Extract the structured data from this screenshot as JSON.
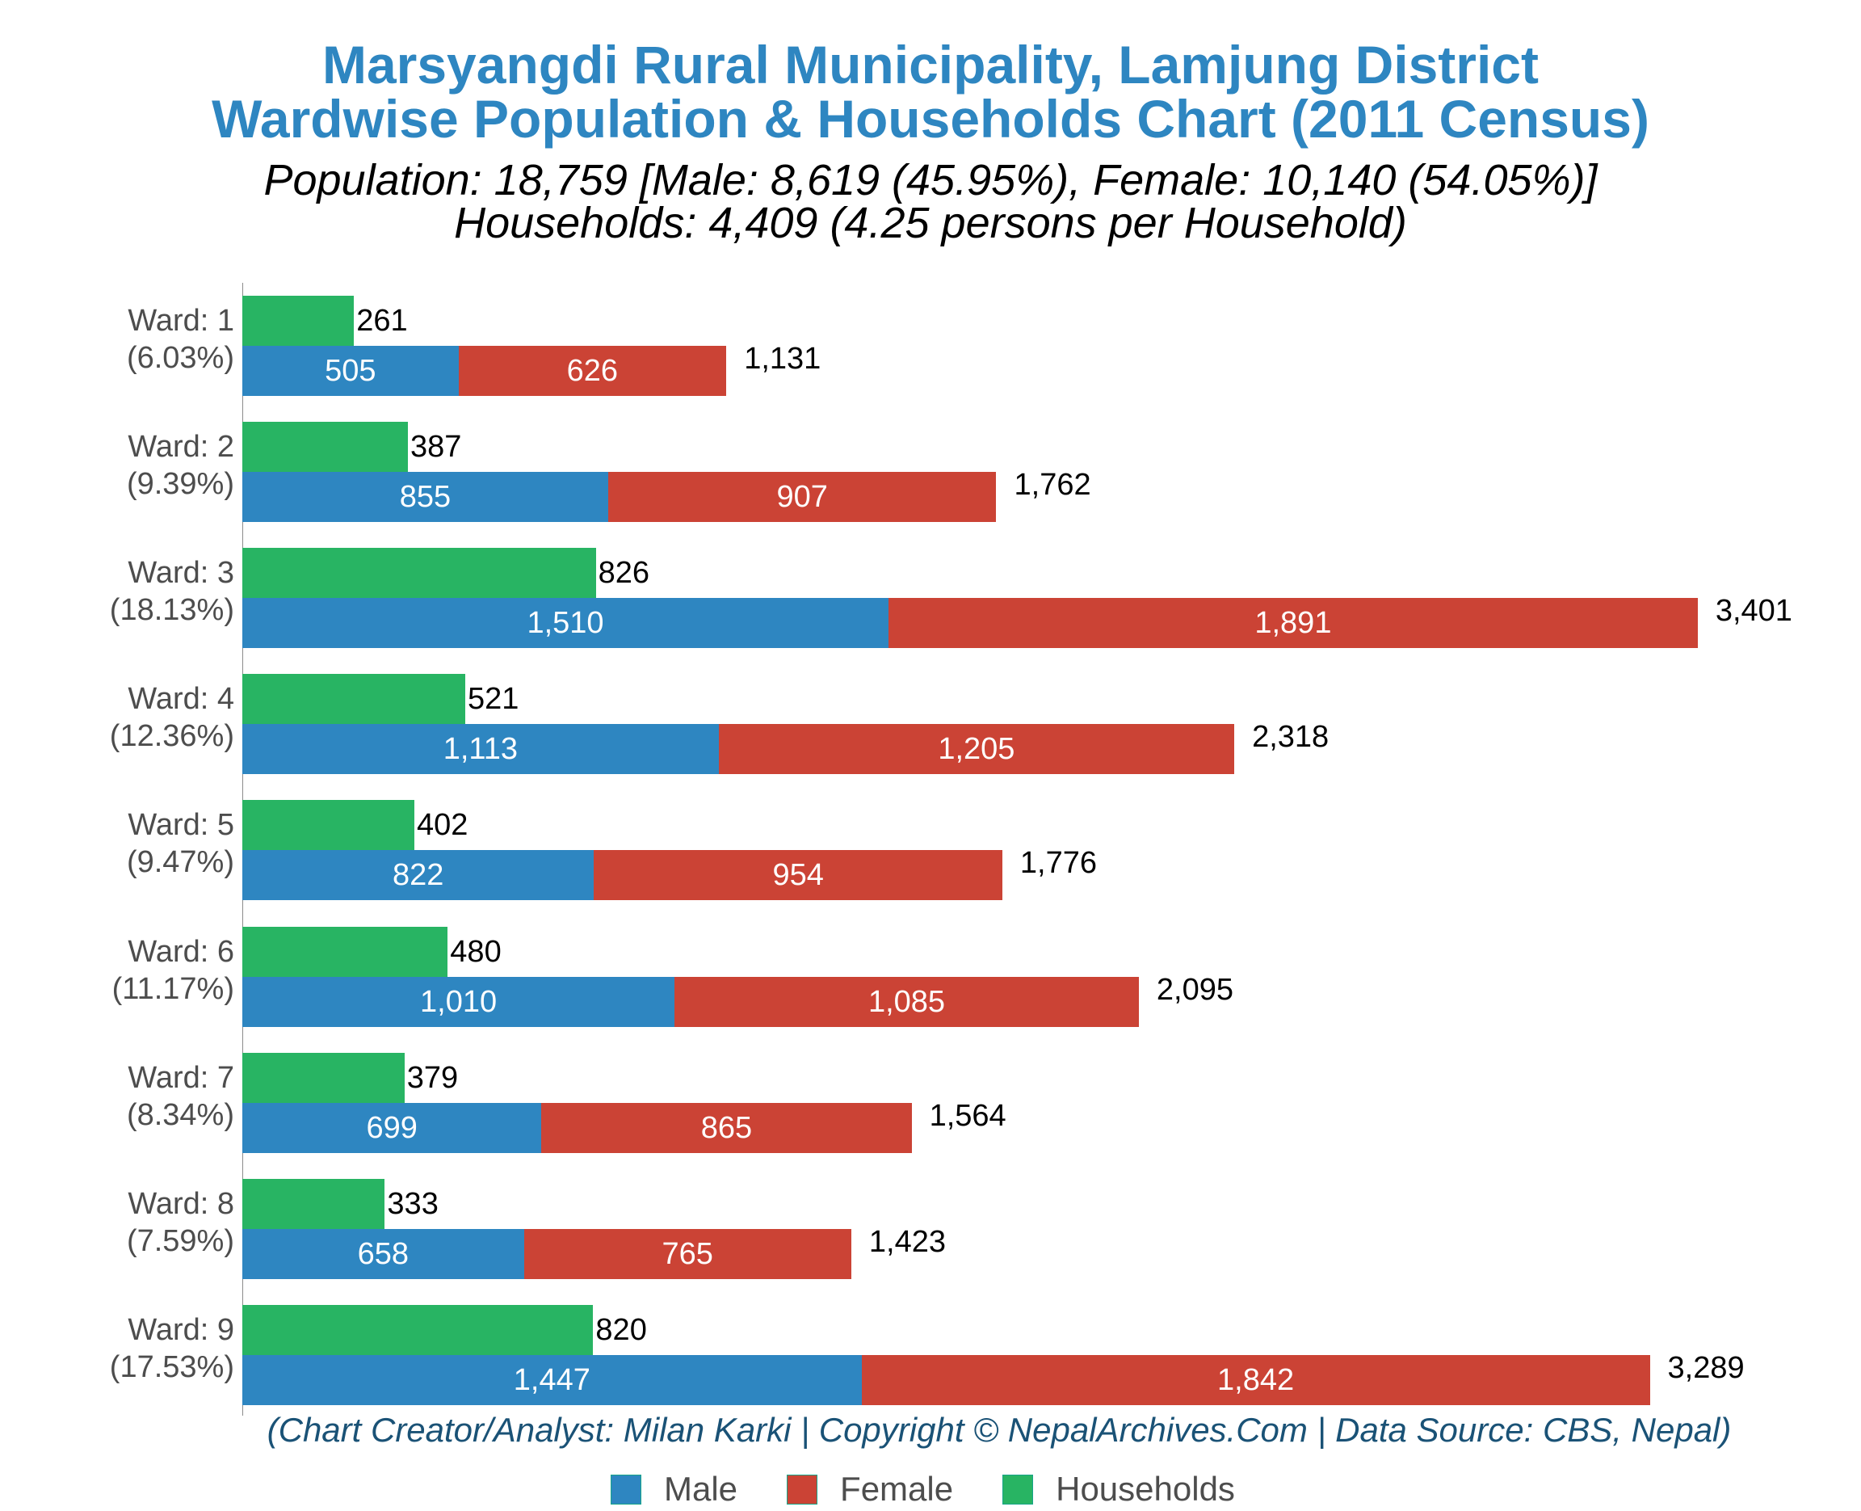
{
  "title": {
    "line1": "Marsyangdi Rural Municipality, Lamjung District",
    "line2": "Wardwise Population & Households Chart (2011 Census)"
  },
  "subtitle": {
    "line1": "Population: 18,759 [Male: 8,619 (45.95%), Female: 10,140 (54.05%)]",
    "line2": "Households: 4,409 (4.25 persons per Household)"
  },
  "footer": "(Chart Creator/Analyst: Milan Karki | Copyright © NepalArchives.Com | Data Source: CBS, Nepal)",
  "colors": {
    "male": "#2E86C1",
    "female": "#CB4335",
    "households": "#28B463",
    "title": "#2E86C1",
    "footer": "#1A5276"
  },
  "legend": [
    {
      "label": "Male",
      "color": "#2E86C1"
    },
    {
      "label": "Female",
      "color": "#CB4335"
    },
    {
      "label": "Households",
      "color": "#28B463"
    }
  ],
  "chart_data": {
    "type": "bar",
    "orientation": "horizontal",
    "stacked": "Male+Female stacked; Households separate bar",
    "title": "Marsyangdi Rural Municipality, Lamjung District — Wardwise Population & Households Chart (2011 Census)",
    "subtitle": "Population: 18,759 [Male: 8,619 (45.95%), Female: 10,140 (54.05%)]; Households: 4,409 (4.25 persons per Household)",
    "xlabel": "",
    "ylabel": "",
    "grid": false,
    "legend_position": "bottom",
    "categories": [
      "Ward: 1",
      "Ward: 2",
      "Ward: 3",
      "Ward: 4",
      "Ward: 5",
      "Ward: 6",
      "Ward: 7",
      "Ward: 8",
      "Ward: 9"
    ],
    "category_share": [
      "(6.03%)",
      "(9.39%)",
      "(18.13%)",
      "(12.36%)",
      "(9.47%)",
      "(11.17%)",
      "(8.34%)",
      "(7.59%)",
      "(17.53%)"
    ],
    "series": [
      {
        "name": "Male",
        "values": [
          505,
          855,
          1510,
          1113,
          822,
          1010,
          699,
          658,
          1447
        ]
      },
      {
        "name": "Female",
        "values": [
          626,
          907,
          1891,
          1205,
          954,
          1085,
          865,
          765,
          1842
        ]
      },
      {
        "name": "Households",
        "values": [
          261,
          387,
          826,
          521,
          402,
          480,
          379,
          333,
          820
        ]
      }
    ],
    "totals": [
      1131,
      1762,
      3401,
      2318,
      1776,
      2095,
      1564,
      1423,
      3289
    ],
    "xlim": [
      0,
      3700
    ]
  },
  "wards": [
    {
      "label": "Ward: 1",
      "pct": "(6.03%)",
      "male": 505,
      "female": 626,
      "hh": 261,
      "male_text": "505",
      "female_text": "626",
      "hh_text": "261",
      "total_text": "1,131"
    },
    {
      "label": "Ward: 2",
      "pct": "(9.39%)",
      "male": 855,
      "female": 907,
      "hh": 387,
      "male_text": "855",
      "female_text": "907",
      "hh_text": "387",
      "total_text": "1,762"
    },
    {
      "label": "Ward: 3",
      "pct": "(18.13%)",
      "male": 1510,
      "female": 1891,
      "hh": 826,
      "male_text": "1,510",
      "female_text": "1,891",
      "hh_text": "826",
      "total_text": "3,401"
    },
    {
      "label": "Ward: 4",
      "pct": "(12.36%)",
      "male": 1113,
      "female": 1205,
      "hh": 521,
      "male_text": "1,113",
      "female_text": "1,205",
      "hh_text": "521",
      "total_text": "2,318"
    },
    {
      "label": "Ward: 5",
      "pct": "(9.47%)",
      "male": 822,
      "female": 954,
      "hh": 402,
      "male_text": "822",
      "female_text": "954",
      "hh_text": "402",
      "total_text": "1,776"
    },
    {
      "label": "Ward: 6",
      "pct": "(11.17%)",
      "male": 1010,
      "female": 1085,
      "hh": 480,
      "male_text": "1,010",
      "female_text": "1,085",
      "hh_text": "480",
      "total_text": "2,095"
    },
    {
      "label": "Ward: 7",
      "pct": "(8.34%)",
      "male": 699,
      "female": 865,
      "hh": 379,
      "male_text": "699",
      "female_text": "865",
      "hh_text": "379",
      "total_text": "1,564"
    },
    {
      "label": "Ward: 8",
      "pct": "(7.59%)",
      "male": 658,
      "female": 765,
      "hh": 333,
      "male_text": "658",
      "female_text": "765",
      "hh_text": "333",
      "total_text": "1,423"
    },
    {
      "label": "Ward: 9",
      "pct": "(17.53%)",
      "male": 1447,
      "female": 1842,
      "hh": 820,
      "male_text": "1,447",
      "female_text": "1,842",
      "hh_text": "820",
      "total_text": "3,289"
    }
  ]
}
